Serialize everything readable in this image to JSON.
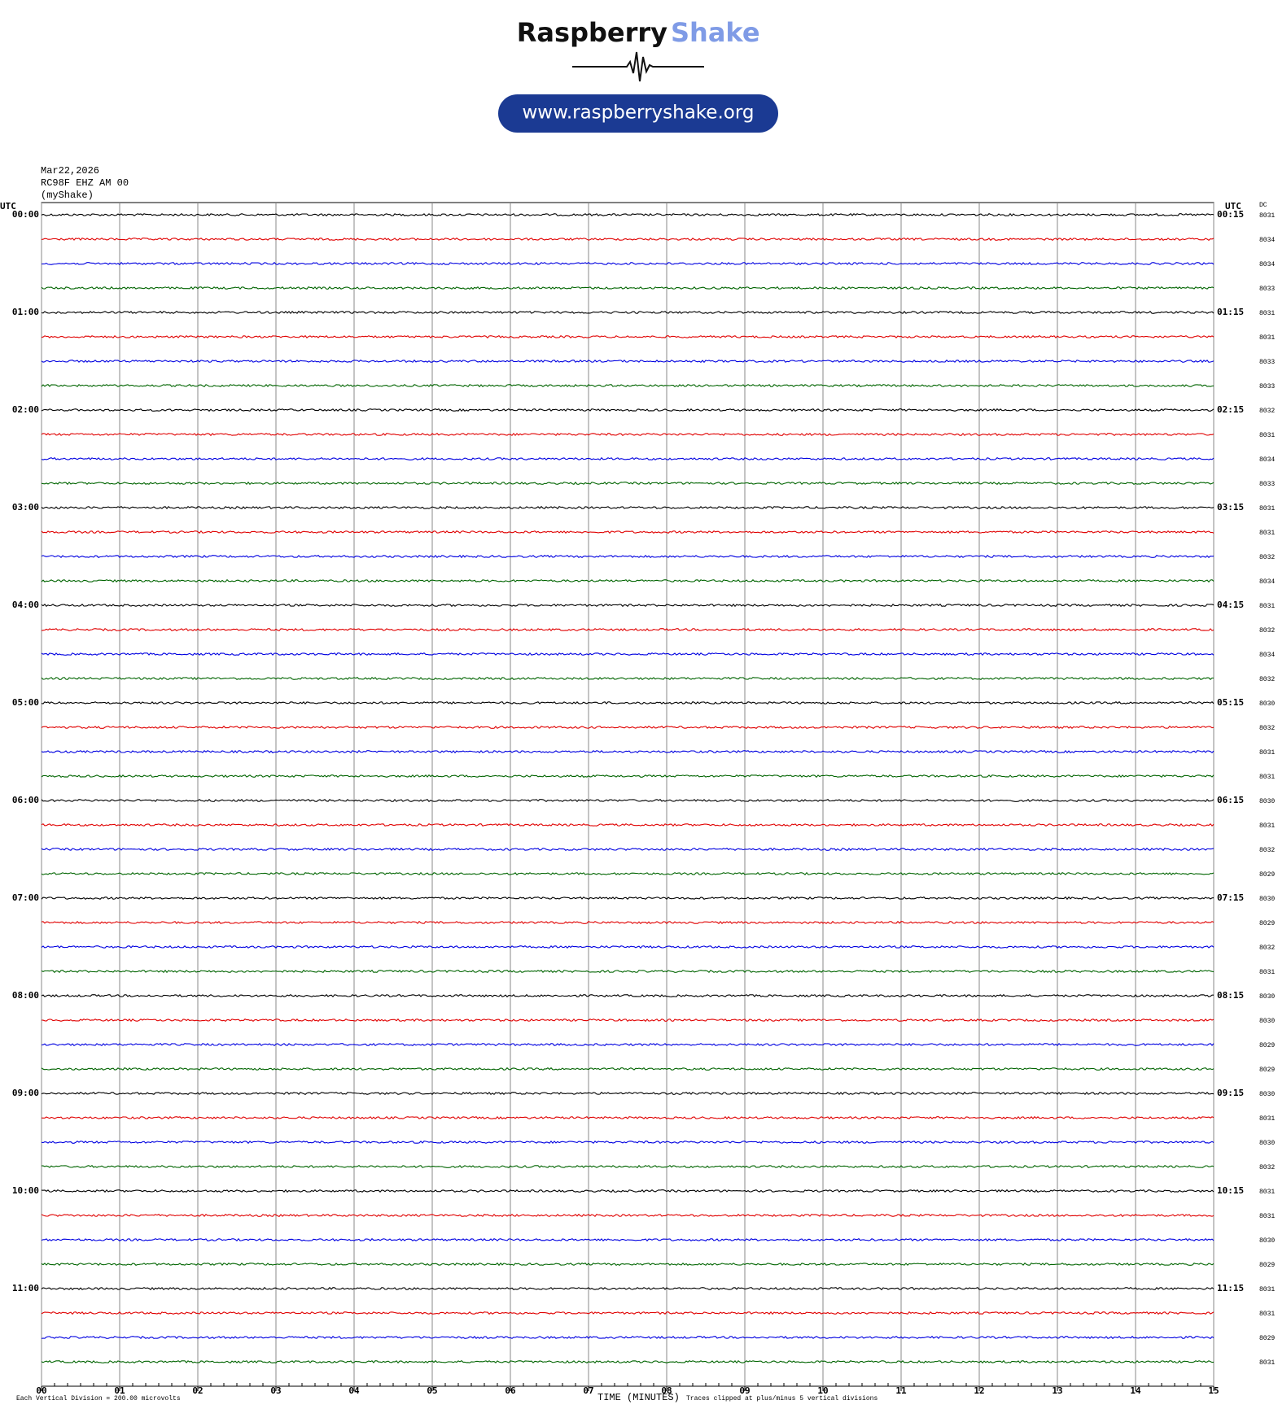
{
  "logo": {
    "brand": "Raspberry",
    "accent": "Shake",
    "url": "www.raspberryshake.org"
  },
  "header": {
    "date": "Mar22,2026",
    "station": "RC98F EHZ AM 00",
    "network": "(myShake)"
  },
  "helicorder": {
    "left_axis_title": "UTC",
    "right_axis_title": "UTC",
    "dc_title": "DC",
    "left_labels": [
      "00:00",
      "01:00",
      "02:00",
      "03:00",
      "04:00",
      "05:00",
      "06:00",
      "07:00",
      "08:00",
      "09:00",
      "10:00",
      "11:00"
    ],
    "right_labels": [
      "00:15",
      "01:15",
      "02:15",
      "03:15",
      "04:15",
      "05:15",
      "06:15",
      "07:15",
      "08:15",
      "09:15",
      "10:15",
      "11:15"
    ],
    "dc": [
      8031,
      8034,
      8034,
      8033,
      8031,
      8031,
      8033,
      8033,
      8032,
      8031,
      8034,
      8033,
      8031,
      8031,
      8032,
      8034,
      8031,
      8032,
      8034,
      8032,
      8030,
      8032,
      8031,
      8031,
      8030,
      8031,
      8032,
      8029,
      8030,
      8029,
      8032,
      8031,
      8030,
      8030,
      8029,
      8029,
      8030,
      8031,
      8030,
      8032,
      8031,
      8031,
      8030,
      8029,
      8031,
      8031,
      8029,
      8031
    ],
    "trace_colors": [
      "#000000",
      "#e00000",
      "#0000e0",
      "#006400"
    ],
    "xlim": [
      0,
      15
    ],
    "xticks": [
      {
        "value": 0,
        "label": "00"
      },
      {
        "value": 1,
        "label": "01"
      },
      {
        "value": 2,
        "label": "02"
      },
      {
        "value": 3,
        "label": "03"
      },
      {
        "value": 4,
        "label": "04"
      },
      {
        "value": 5,
        "label": "05"
      },
      {
        "value": 6,
        "label": "06"
      },
      {
        "value": 7,
        "label": "07"
      },
      {
        "value": 8,
        "label": "08"
      },
      {
        "value": 9,
        "label": "09"
      },
      {
        "value": 10,
        "label": "10"
      },
      {
        "value": 11,
        "label": "11"
      },
      {
        "value": 12,
        "label": "12"
      },
      {
        "value": 13,
        "label": "13"
      },
      {
        "value": 14,
        "label": "14"
      },
      {
        "value": 15,
        "label": "15"
      }
    ],
    "x_label": "TIME (MINUTES)",
    "scale_note": "Each Vertical Division =  200.00 microvolts",
    "clip_note": "Traces clipped at plus/minus 5 vertical divisions"
  }
}
